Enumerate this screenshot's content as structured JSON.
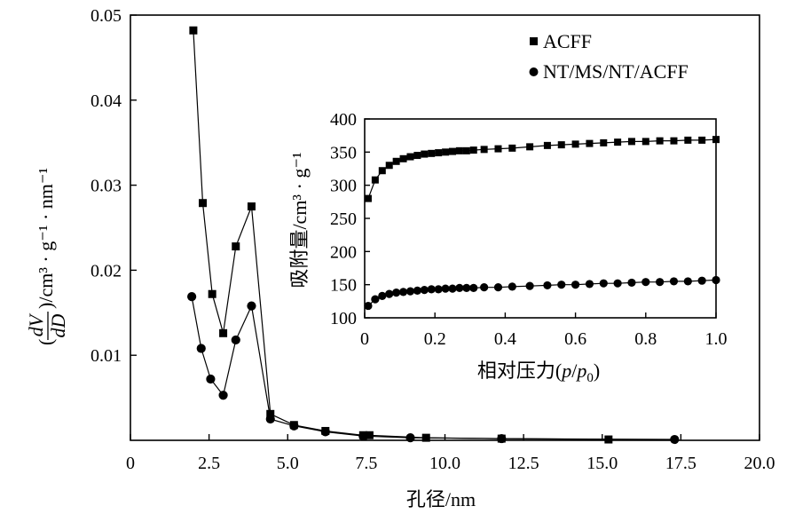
{
  "chart_data": [
    {
      "type": "line",
      "role": "main",
      "xlabel": "孔径/nm",
      "ylabel": {
        "open": "(",
        "num": "dV",
        "den": "dD",
        "rest": ")/cm³ · g⁻¹ · nm⁻¹"
      },
      "xlim": [
        0,
        20
      ],
      "ylim": [
        0,
        0.05
      ],
      "xticks": [
        0,
        2.5,
        5.0,
        7.5,
        10.0,
        12.5,
        15.0,
        17.5,
        20.0
      ],
      "xtick_labels": [
        "0",
        "2.5",
        "5.0",
        "7.5",
        "10.0",
        "12.5",
        "15.0",
        "17.5",
        "20.0"
      ],
      "yticks": [
        0.01,
        0.02,
        0.03,
        0.04,
        0.05
      ],
      "ytick_labels": [
        "0.01",
        "0.02",
        "0.03",
        "0.04",
        "0.05"
      ],
      "legend_position": "top-right",
      "series": [
        {
          "name": "ACFF",
          "marker": "square",
          "x": [
            2.0,
            2.3,
            2.6,
            2.95,
            3.35,
            3.85,
            4.45,
            5.2,
            6.2,
            7.4,
            7.6,
            9.4,
            11.8,
            15.2
          ],
          "y": [
            0.0482,
            0.0279,
            0.0172,
            0.0126,
            0.0228,
            0.0275,
            0.0031,
            0.0018,
            0.0011,
            0.0006,
            0.0006,
            0.0003,
            0.0002,
            0.0001
          ]
        },
        {
          "name": "NT/MS/NT/ACFF",
          "marker": "circle",
          "x": [
            1.95,
            2.25,
            2.55,
            2.95,
            3.35,
            3.85,
            4.45,
            5.2,
            6.2,
            7.4,
            8.9,
            11.8,
            17.3
          ],
          "y": [
            0.0169,
            0.0108,
            0.0072,
            0.0053,
            0.0118,
            0.0158,
            0.0025,
            0.0017,
            0.001,
            0.0005,
            0.0003,
            0.0002,
            0.0001
          ]
        }
      ]
    },
    {
      "type": "line",
      "role": "inset",
      "xlabel": {
        "prefix": "相对压力(",
        "p": "p",
        "slash": "/",
        "p0": "p",
        "sub": "0",
        "suffix": ")"
      },
      "ylabel": "吸附量/cm³ · g⁻¹",
      "xlim": [
        0,
        1.0
      ],
      "ylim": [
        100,
        400
      ],
      "xticks": [
        0,
        0.2,
        0.4,
        0.6,
        0.8,
        1.0
      ],
      "xtick_labels": [
        "0",
        "0.2",
        "0.4",
        "0.6",
        "0.8",
        "1.0"
      ],
      "yticks": [
        100,
        150,
        200,
        250,
        300,
        350,
        400
      ],
      "ytick_labels": [
        "100",
        "150",
        "200",
        "250",
        "300",
        "350",
        "400"
      ],
      "series": [
        {
          "name": "ACFF",
          "marker": "square",
          "x": [
            0.01,
            0.03,
            0.05,
            0.07,
            0.09,
            0.11,
            0.13,
            0.15,
            0.17,
            0.19,
            0.21,
            0.23,
            0.25,
            0.27,
            0.29,
            0.31,
            0.34,
            0.38,
            0.42,
            0.47,
            0.52,
            0.56,
            0.6,
            0.64,
            0.68,
            0.72,
            0.76,
            0.8,
            0.84,
            0.88,
            0.92,
            0.96,
            1.0
          ],
          "y": [
            280,
            308,
            322,
            330,
            336,
            340,
            343,
            345,
            347,
            348,
            349,
            350,
            351,
            352,
            352,
            353,
            354,
            355,
            356,
            358,
            360,
            361,
            362,
            363,
            364,
            365,
            366,
            366,
            367,
            367,
            368,
            368,
            369
          ]
        },
        {
          "name": "NT/MS/NT/ACFF",
          "marker": "circle",
          "x": [
            0.01,
            0.03,
            0.05,
            0.07,
            0.09,
            0.11,
            0.13,
            0.15,
            0.17,
            0.19,
            0.21,
            0.23,
            0.25,
            0.27,
            0.29,
            0.31,
            0.34,
            0.38,
            0.42,
            0.47,
            0.52,
            0.56,
            0.6,
            0.64,
            0.68,
            0.72,
            0.76,
            0.8,
            0.84,
            0.88,
            0.92,
            0.96,
            1.0
          ],
          "y": [
            118,
            128,
            133,
            136,
            138,
            139,
            140,
            141,
            142,
            143,
            143,
            144,
            144,
            145,
            145,
            145,
            146,
            146,
            147,
            148,
            149,
            150,
            150,
            151,
            152,
            152,
            153,
            154,
            154,
            155,
            155,
            156,
            157
          ]
        }
      ]
    }
  ]
}
